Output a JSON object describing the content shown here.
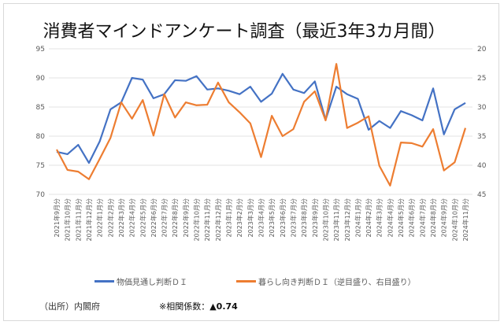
{
  "chart_data": {
    "type": "line",
    "title": "消費者マインドアンケート調査（最近3年3カ月間）",
    "categories": [
      "2021年9月分",
      "2021年10月分",
      "2021年11月分",
      "2021年12月分",
      "2022年1月分",
      "2022年2月分",
      "2022年3月分",
      "2022年4月分",
      "2022年5月分",
      "2022年6月分",
      "2022年7月分",
      "2022年8月分",
      "2022年9月分",
      "2022年10月分",
      "2022年11月分",
      "2022年12月分",
      "2023年1月分",
      "2023年2月分",
      "2023年3月分",
      "2023年4月分",
      "2023年5月分",
      "2023年6月分",
      "2023年7月分",
      "2023年8月分",
      "2023年9月分",
      "2023年10月分",
      "2023年11月分",
      "2023年12月分",
      "2024年1月分",
      "2024年2月分",
      "2024年3月分",
      "2024年4月分",
      "2024年5月分",
      "2024年6月分",
      "2024年7月分",
      "2024年8月分",
      "2024年9月分",
      "2024年10月分",
      "2024年11月分"
    ],
    "left_axis": {
      "ylim": [
        70,
        95
      ],
      "ticks": [
        "70",
        "75",
        "80",
        "85",
        "90",
        "95"
      ]
    },
    "right_axis": {
      "ylim": [
        45,
        20
      ],
      "reversed": true,
      "ticks": [
        "45",
        "40",
        "35",
        "30",
        "25",
        "20"
      ]
    },
    "grid": true,
    "legend_position": "bottom",
    "series": [
      {
        "name": "物価見通し判断ＤＩ",
        "axis": "left",
        "color": "#4472C4",
        "values": [
          77.3,
          76.9,
          78.5,
          75.4,
          79.1,
          84.6,
          85.8,
          90.0,
          89.7,
          86.5,
          87.2,
          89.6,
          89.5,
          90.3,
          88.0,
          88.2,
          87.8,
          87.2,
          88.5,
          85.9,
          87.3,
          90.7,
          88.0,
          87.4,
          89.4,
          82.8,
          88.5,
          87.2,
          86.4,
          81.1,
          82.6,
          81.4,
          84.3,
          83.6,
          82.7,
          88.2,
          80.3,
          84.6,
          85.7
        ]
      },
      {
        "name": "暮らし向き判断ＤＩ（逆目盛り、右目盛り）",
        "axis": "right",
        "color": "#ED7D31",
        "values": [
          37.3,
          40.8,
          41.1,
          42.4,
          38.9,
          35.3,
          29.2,
          32.0,
          28.8,
          34.9,
          27.8,
          31.8,
          29.2,
          29.7,
          29.6,
          25.8,
          29.2,
          30.9,
          32.8,
          38.6,
          31.5,
          35.0,
          33.8,
          29.1,
          27.3,
          32.3,
          22.6,
          33.6,
          32.7,
          31.6,
          40.1,
          43.5,
          36.1,
          36.2,
          36.8,
          33.8,
          40.9,
          39.5,
          33.6
        ]
      }
    ]
  },
  "footer": {
    "source": "（出所）内閣府",
    "correlation_label": "※相関係数：",
    "correlation_value": "▲0.74"
  }
}
